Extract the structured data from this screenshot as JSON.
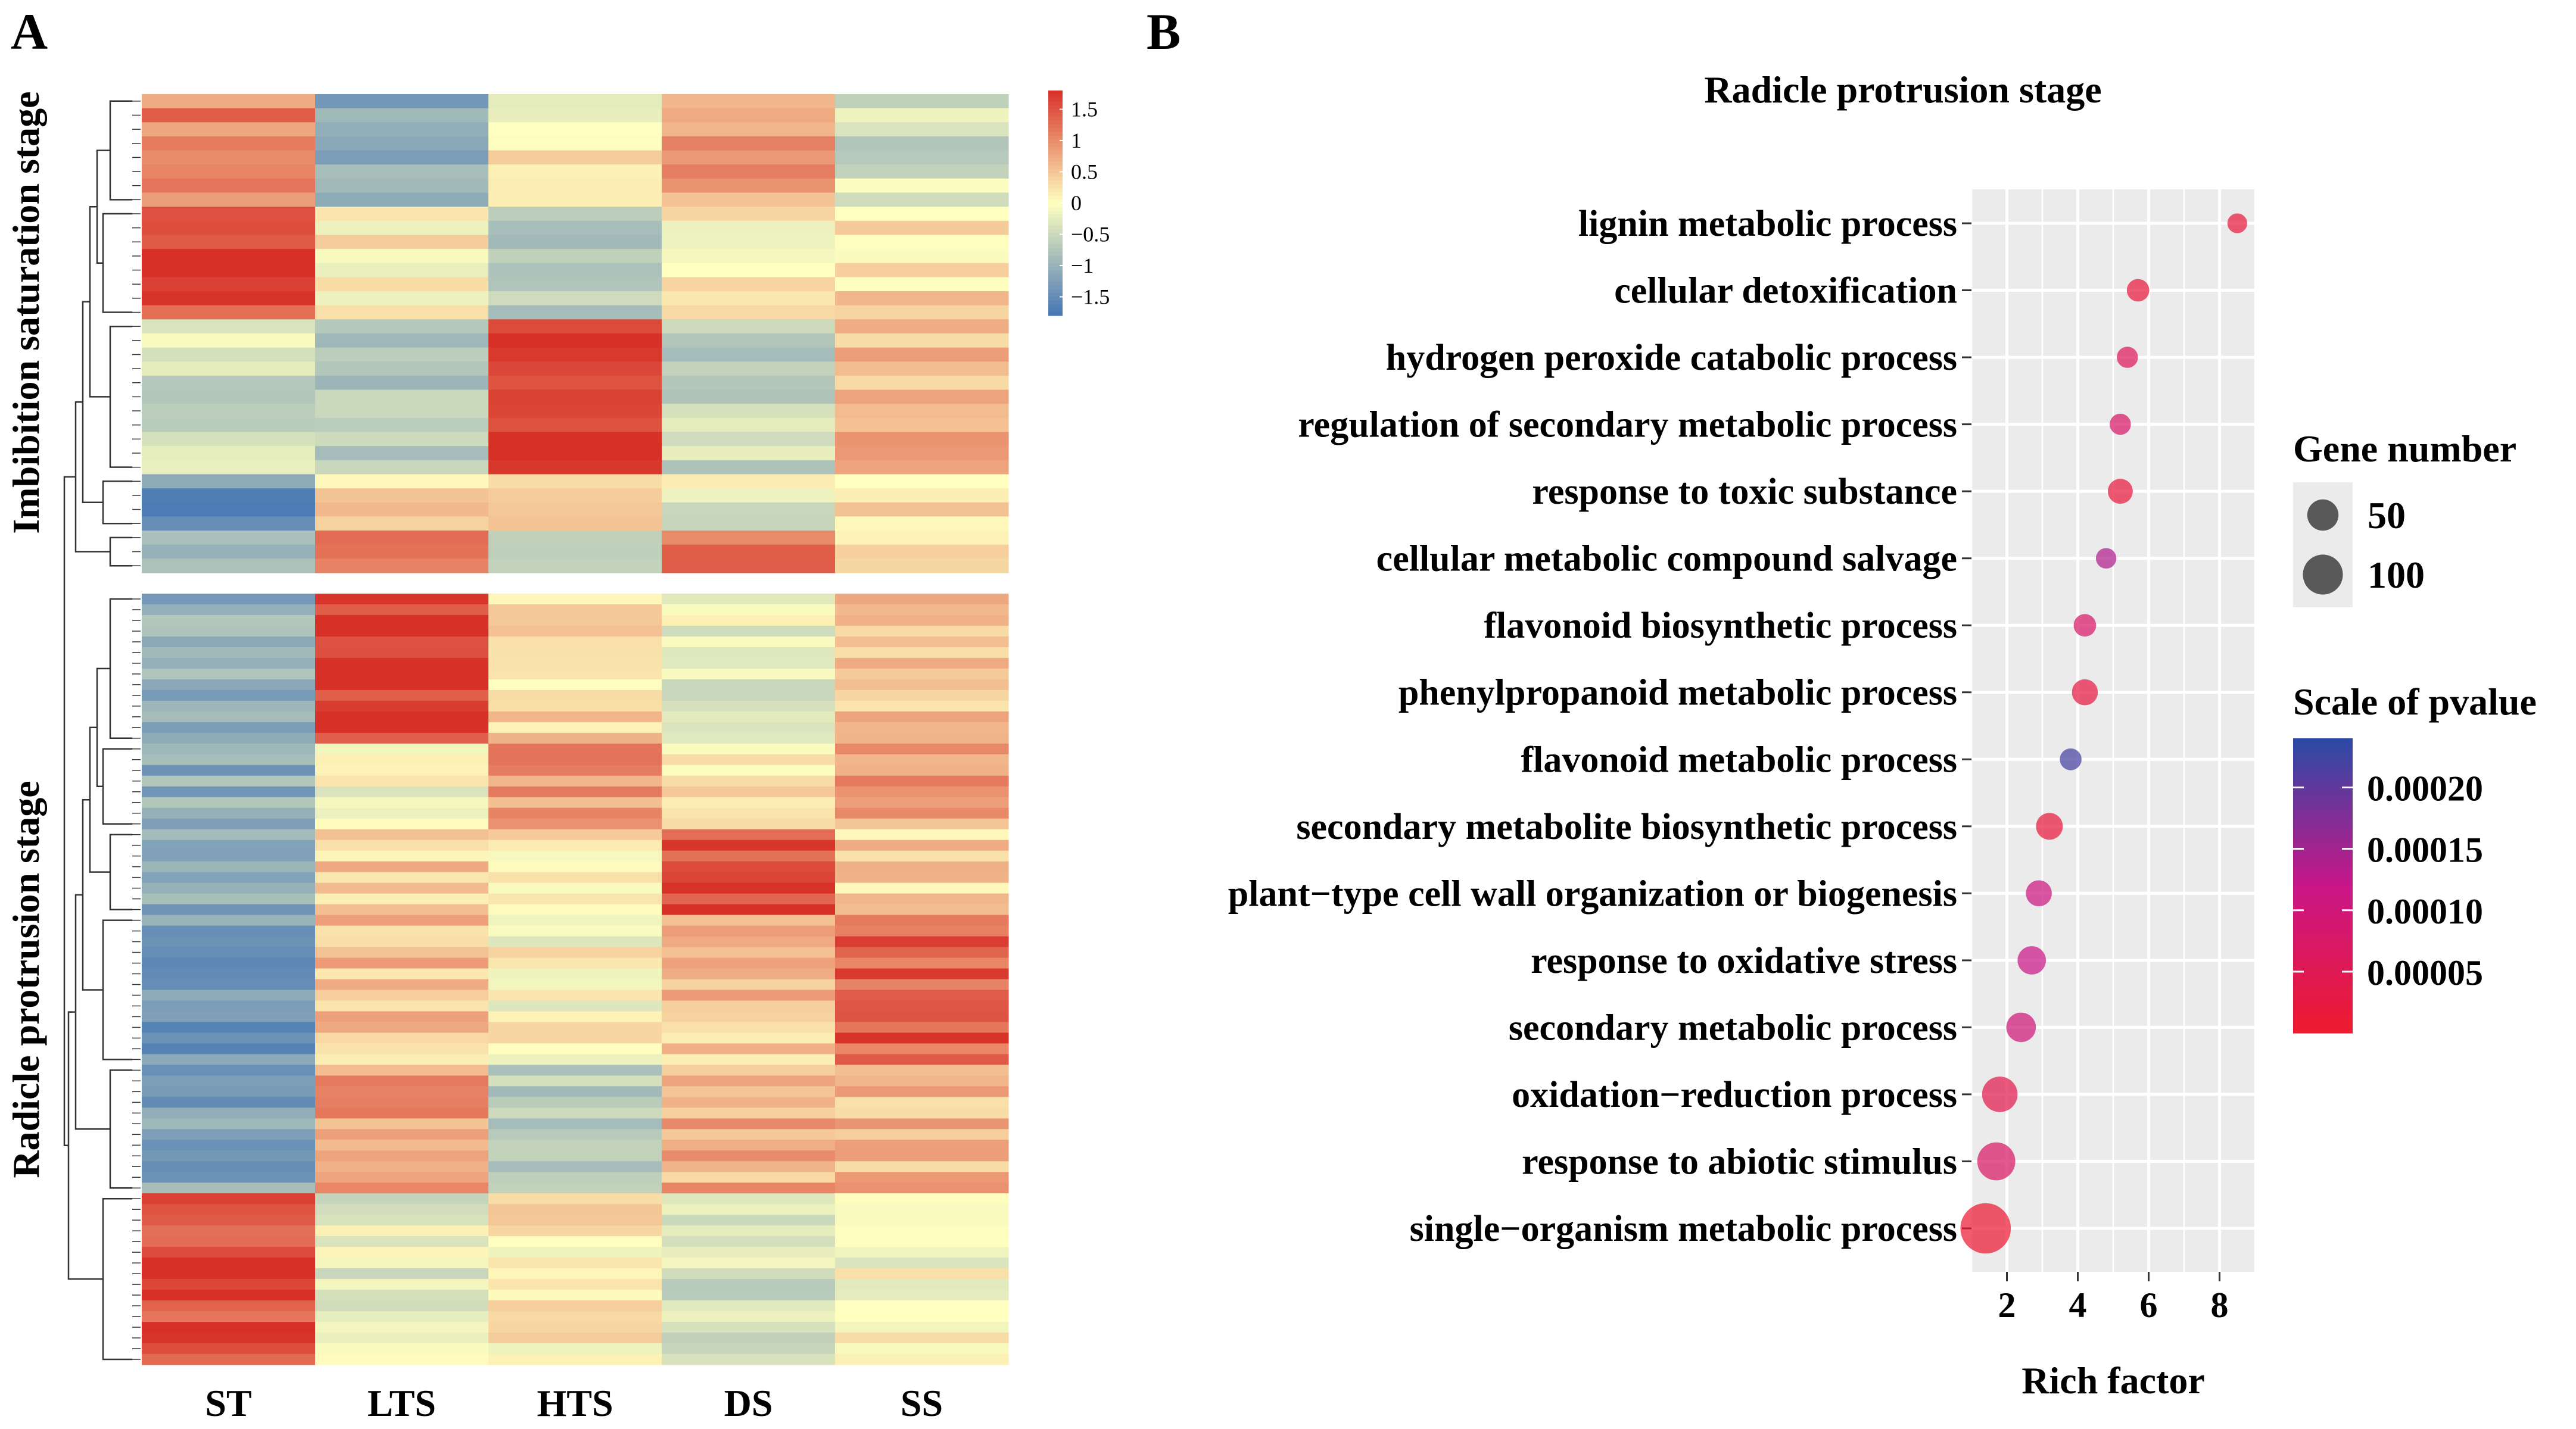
{
  "panels": {
    "a": {
      "letter": "A"
    },
    "b": {
      "letter": "B"
    }
  },
  "heatmap": {
    "columns": [
      "ST",
      "LTS",
      "HTS",
      "DS",
      "SS"
    ],
    "row_groups": [
      {
        "label": "Imbibition saturation stage"
      },
      {
        "label": "Radicle protrusion stage"
      }
    ],
    "color_scale": {
      "ticks": [
        "1.5",
        "1",
        "0.5",
        "0",
        "−0.5",
        "−1",
        "−1.5"
      ],
      "range": [
        -1.8,
        1.8
      ],
      "low_color": "#4575b4",
      "mid_color": "#ffffbf",
      "high_color": "#d73027"
    }
  },
  "chart_data": [
    {
      "type": "heatmap",
      "columns": [
        "ST",
        "LTS",
        "HTS",
        "DS",
        "SS"
      ],
      "groups": [
        {
          "label": "Imbibition saturation stage",
          "blocks": [
            {
              "rows": 8,
              "values": [
                1.1,
                -1.1,
                0.1,
                0.8,
                -0.4
              ]
            },
            {
              "rows": 8,
              "values": [
                1.6,
                0.1,
                -0.6,
                0.1,
                0.3
              ]
            },
            {
              "rows": 11,
              "values": [
                -0.4,
                -0.6,
                1.7,
                -0.5,
                0.6
              ]
            },
            {
              "rows": 4,
              "values": [
                -1.4,
                0.3,
                0.4,
                -0.2,
                0.2
              ]
            },
            {
              "rows": 3,
              "values": [
                -0.9,
                1.2,
                -0.6,
                1.3,
                0.1
              ]
            }
          ]
        },
        {
          "label": "Radicle protrusion stage",
          "blocks": [
            {
              "rows": 14,
              "values": [
                -1.1,
                1.7,
                0.3,
                -0.2,
                0.5
              ]
            },
            {
              "rows": 8,
              "values": [
                -1.1,
                -0.1,
                0.9,
                0.2,
                0.8
              ]
            },
            {
              "rows": 8,
              "values": [
                -1.2,
                0.4,
                0.2,
                1.6,
                0.4
              ]
            },
            {
              "rows": 14,
              "values": [
                -1.3,
                0.5,
                0.0,
                0.5,
                1.4
              ]
            },
            {
              "rows": 12,
              "values": [
                -1.2,
                0.8,
                -0.6,
                0.7,
                0.6
              ]
            },
            {
              "rows": 16,
              "values": [
                1.5,
                -0.2,
                0.2,
                -0.5,
                0.0
              ]
            }
          ]
        }
      ]
    },
    {
      "type": "scatter",
      "title": "Radicle protrusion stage",
      "xlabel": "Rich factor",
      "xlim": [
        1.0,
        9.0
      ],
      "xticks": [
        2,
        4,
        6,
        8
      ],
      "grid": true,
      "categories": [
        "lignin metabolic process",
        "cellular detoxification",
        "hydrogen peroxide catabolic process",
        "regulation of secondary metabolic process",
        "response to toxic substance",
        "cellular metabolic compound salvage",
        "flavonoid biosynthetic process",
        "phenylpropanoid metabolic process",
        "flavonoid metabolic process",
        "secondary metabolite biosynthetic process",
        "plant−type cell wall organization or biogenesis",
        "response to oxidative stress",
        "secondary metabolic process",
        "oxidation−reduction process",
        "response to abiotic stimulus",
        "single−organism metabolic process"
      ],
      "x": [
        8.5,
        5.7,
        5.4,
        5.2,
        5.2,
        4.8,
        4.2,
        4.2,
        3.8,
        3.2,
        2.9,
        2.7,
        2.4,
        1.8,
        1.7,
        1.4
      ],
      "gene_number": [
        5,
        9,
        7,
        7,
        14,
        6,
        9,
        16,
        8,
        18,
        16,
        22,
        25,
        45,
        55,
        120
      ],
      "pvalue": [
        2e-05,
        2e-05,
        6e-05,
        8e-05,
        2e-05,
        0.00014,
        8e-05,
        3e-05,
        0.00022,
        2e-05,
        0.00011,
        0.00012,
        0.0001,
        4e-05,
        7e-05,
        1e-05
      ],
      "size_legend": {
        "title": "Gene number",
        "entries": [
          {
            "label": "50",
            "value": 50
          },
          {
            "label": "100",
            "value": 100
          }
        ]
      },
      "color_legend": {
        "title": "Scale of pvalue",
        "ticks": [
          {
            "label": "0.00020",
            "value": 0.0002
          },
          {
            "label": "0.00015",
            "value": 0.00015
          },
          {
            "label": "0.00010",
            "value": 0.0001
          },
          {
            "label": "0.00005",
            "value": 5e-05
          }
        ],
        "range": [
          0.0,
          0.00024
        ],
        "low_color": "#ee1b2e",
        "mid_color": "#c91687",
        "high_color": "#2b4aa6"
      }
    }
  ]
}
